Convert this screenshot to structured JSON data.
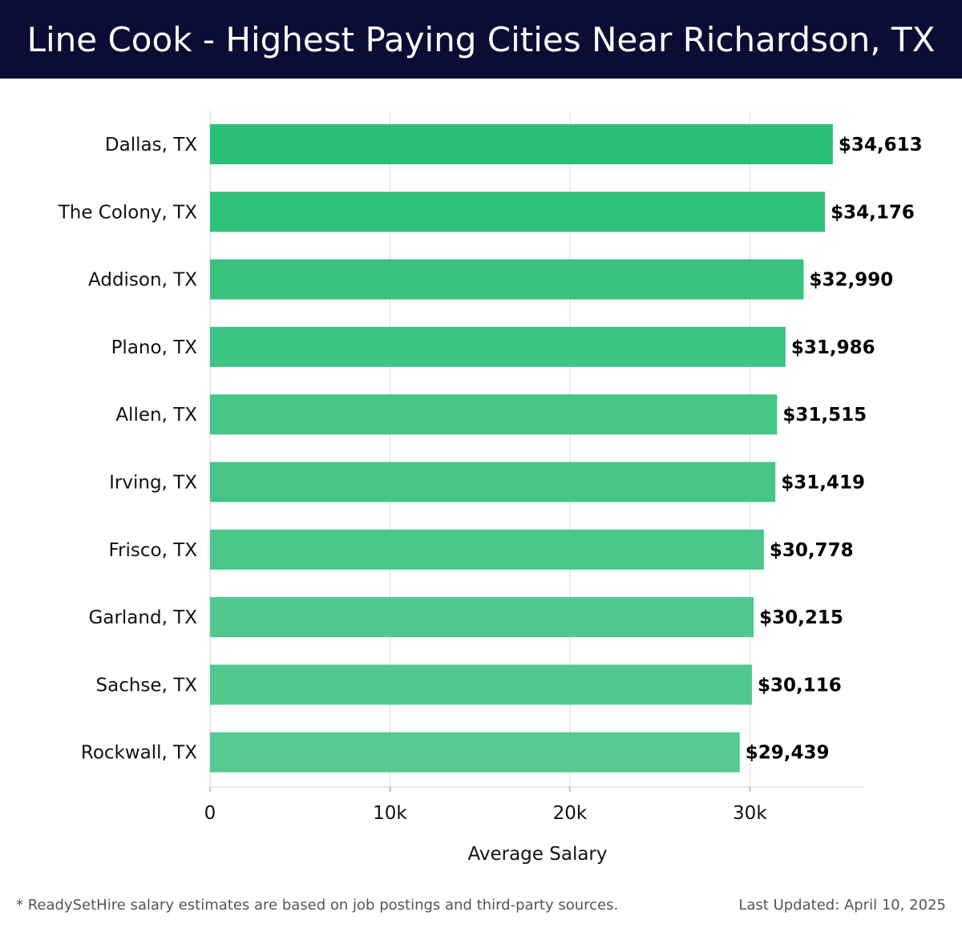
{
  "header": {
    "title": "Line Cook - Highest Paying Cities Near Richardson, TX"
  },
  "chart_data": {
    "type": "bar",
    "orientation": "horizontal",
    "categories": [
      "Dallas, TX",
      "The Colony, TX",
      "Addison, TX",
      "Plano, TX",
      "Allen, TX",
      "Irving, TX",
      "Frisco, TX",
      "Garland, TX",
      "Sachse, TX",
      "Rockwall, TX"
    ],
    "values": [
      34613,
      34176,
      32990,
      31986,
      31515,
      31419,
      30778,
      30215,
      30116,
      29439
    ],
    "value_labels": [
      "$34,613",
      "$34,176",
      "$32,990",
      "$31,986",
      "$31,515",
      "$31,419",
      "$30,778",
      "$30,215",
      "$30,116",
      "$29,439"
    ],
    "xlabel": "Average Salary",
    "xlim": [
      0,
      36400
    ],
    "xticks": [
      0,
      10000,
      20000,
      30000
    ],
    "xtick_labels": [
      "0",
      "10k",
      "20k",
      "30k"
    ],
    "grid": true,
    "bar_colors": [
      "#2bbf77",
      "#2fc07a",
      "#37c27e",
      "#3ec483",
      "#45c586",
      "#46c587",
      "#4bc78a",
      "#50c88d",
      "#51c88e",
      "#56ca91"
    ]
  },
  "footer": {
    "note": "* ReadySetHire salary estimates are based on job postings and third-party sources.",
    "updated": "Last Updated: April 10, 2025"
  }
}
